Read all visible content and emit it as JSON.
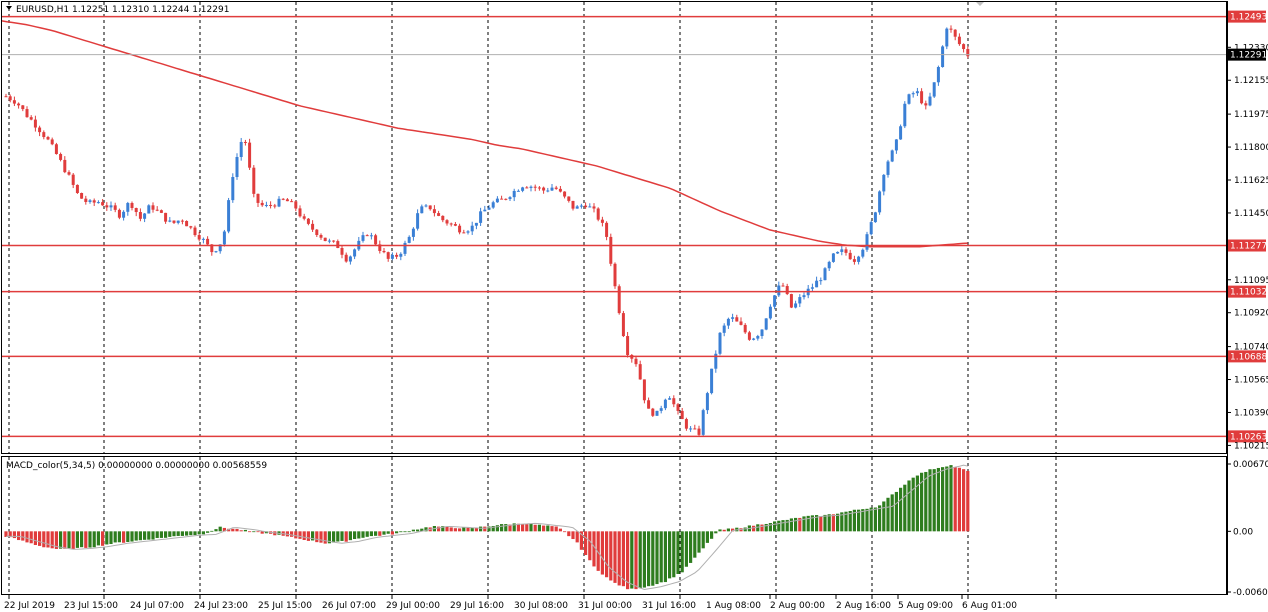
{
  "main": {
    "header": "EURUSD,H1  1.12251 1.12310 1.12244 1.12291",
    "price_ticks": [
      "1.12330",
      "1.12155",
      "1.11975",
      "1.11800",
      "1.11625",
      "1.11450",
      "1.11095",
      "1.10920",
      "1.10740",
      "1.10565",
      "1.10390",
      "1.10215"
    ],
    "price_ticks_values": [
      1.1233,
      1.12155,
      1.11975,
      1.118,
      1.11625,
      1.1145,
      1.11095,
      1.1092,
      1.1074,
      1.10565,
      1.1039,
      1.10215
    ],
    "hlines": [
      {
        "value": 1.12493,
        "label": "1.12493"
      },
      {
        "value": 1.11277,
        "label": "1.11277"
      },
      {
        "value": 1.11032,
        "label": "1.11032"
      },
      {
        "value": 1.10688,
        "label": "1.10688"
      },
      {
        "value": 1.10263,
        "label": "1.10263"
      }
    ],
    "current_price": {
      "value": 1.12291,
      "label": "1.12291"
    }
  },
  "macd": {
    "header": "MACD_color(5,34,5) 0.00000000 0.00000000 0.00568559",
    "ticks": [
      "0.006703",
      "0.00",
      "-0.00604"
    ],
    "ticks_values": [
      0.006703,
      0.0,
      -0.00604
    ]
  },
  "time_axis": [
    "22 Jul 2019",
    "23 Jul 15:00",
    "24 Jul 07:00",
    "24 Jul 23:00",
    "25 Jul 15:00",
    "26 Jul 07:00",
    "29 Jul 00:00",
    "29 Jul 16:00",
    "30 Jul 08:00",
    "31 Jul 00:00",
    "31 Jul 16:00",
    "1 Aug 08:00",
    "2 Aug 00:00",
    "2 Aug 16:00",
    "5 Aug 09:00",
    "6 Aug 01:00"
  ],
  "colors": {
    "up": "#3a7fd5",
    "down": "#e03c3c",
    "hline": "#e03c3c",
    "ma": "#e03c3c",
    "macd_pos": "#2e7d1e",
    "macd_neg": "#e03c3c",
    "grid": "#000000",
    "current_line": "#b0b0b0"
  },
  "chart_data": {
    "type": "line",
    "symbol": "EURUSD",
    "timeframe": "H1",
    "ohlc_last": {
      "open": 1.12251,
      "high": 1.1231,
      "low": 1.12244,
      "close": 1.12291
    },
    "x_range": [
      "22 Jul 2019",
      "6 Aug 01:00"
    ],
    "ylim": [
      1.1018,
      1.1256
    ],
    "price_anchors": [
      1.1207,
      1.1204,
      1.1197,
      1.1191,
      1.1184,
      1.1175,
      1.1165,
      1.1154,
      1.115,
      1.1151,
      1.1148,
      1.1144,
      1.1151,
      1.1142,
      1.1149,
      1.1144,
      1.1139,
      1.1142,
      1.1136,
      1.1131,
      1.1124,
      1.1131,
      1.1168,
      1.1188,
      1.1152,
      1.1148,
      1.115,
      1.1152,
      1.1148,
      1.1139,
      1.1135,
      1.113,
      1.1128,
      1.112,
      1.1128,
      1.1135,
      1.1127,
      1.112,
      1.1123,
      1.1132,
      1.1147,
      1.1148,
      1.1142,
      1.1139,
      1.1136,
      1.1137,
      1.1145,
      1.115,
      1.1152,
      1.1156,
      1.116,
      1.1159,
      1.1157,
      1.1159,
      1.1153,
      1.1147,
      1.115,
      1.1145,
      1.1135,
      1.1102,
      1.1072,
      1.1065,
      1.104,
      1.1038,
      1.105,
      1.1038,
      1.103,
      1.1028,
      1.1055,
      1.108,
      1.109,
      1.1085,
      1.1078,
      1.1082,
      1.1098,
      1.1108,
      1.1094,
      1.1101,
      1.1106,
      1.1112,
      1.1122,
      1.1125,
      1.112,
      1.1128,
      1.1145,
      1.117,
      1.118,
      1.1205,
      1.121,
      1.12,
      1.1218,
      1.1245,
      1.1236,
      1.1229
    ],
    "ma_anchors": [
      1.1247,
      1.1245,
      1.1242,
      1.1238,
      1.1234,
      1.123,
      1.1226,
      1.1222,
      1.1218,
      1.1214,
      1.121,
      1.1206,
      1.1202,
      1.1199,
      1.1196,
      1.1193,
      1.119,
      1.1188,
      1.1186,
      1.1184,
      1.1181,
      1.1179,
      1.1176,
      1.1173,
      1.117,
      1.1166,
      1.1162,
      1.1158,
      1.1152,
      1.1146,
      1.1141,
      1.1136,
      1.1133,
      1.113,
      1.1128,
      1.1127,
      1.1127,
      1.1127,
      1.1128,
      1.1129
    ],
    "macd_anchors": [
      -0.0005,
      -0.001,
      -0.0015,
      -0.0018,
      -0.0017,
      -0.0015,
      -0.0012,
      -0.001,
      -0.0008,
      -0.0006,
      -0.0004,
      -0.0003,
      0.0004,
      0.0002,
      -0.0001,
      -0.0003,
      -0.0006,
      -0.0009,
      -0.0012,
      -0.001,
      -0.0006,
      -0.0004,
      -0.0002,
      0.0002,
      0.0005,
      0.0004,
      0.0003,
      0.0005,
      0.0007,
      0.0008,
      0.0006,
      0.0004,
      -0.001,
      -0.0035,
      -0.005,
      -0.0058,
      -0.0055,
      -0.005,
      -0.004,
      -0.002,
      0.0001,
      0.0003,
      0.0006,
      0.0009,
      0.0012,
      0.0015,
      0.0016,
      0.0019,
      0.0022,
      0.0025,
      0.004,
      0.0055,
      0.0062,
      0.0066,
      0.006
    ]
  }
}
